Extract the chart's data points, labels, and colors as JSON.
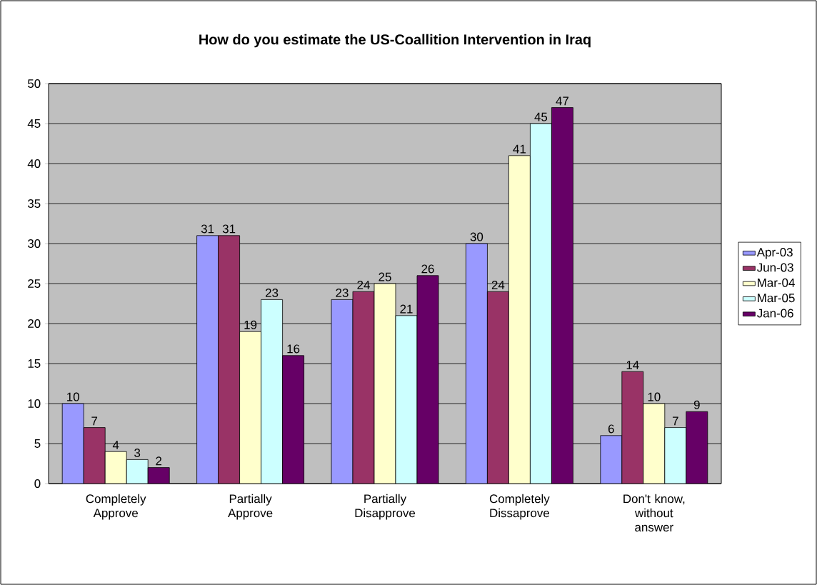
{
  "chart_data": {
    "type": "bar",
    "title": "How do you estimate the US-Coallition Intervention in Iraq",
    "categories": [
      "Completely Approve",
      "Partially Approve",
      "Partially Disapprove",
      "Completely Dissaprove",
      "Don't know, without answer"
    ],
    "series": [
      {
        "name": "Apr-03",
        "color": "#9999ff",
        "values": [
          10,
          31,
          23,
          30,
          6
        ]
      },
      {
        "name": "Jun-03",
        "color": "#993366",
        "values": [
          7,
          31,
          24,
          24,
          14
        ]
      },
      {
        "name": "Mar-04",
        "color": "#ffffcc",
        "values": [
          4,
          19,
          25,
          41,
          10
        ]
      },
      {
        "name": "Mar-05",
        "color": "#ccffff",
        "values": [
          3,
          23,
          21,
          45,
          7
        ]
      },
      {
        "name": "Jan-06",
        "color": "#660066",
        "values": [
          2,
          16,
          26,
          47,
          9
        ]
      }
    ],
    "ylim": [
      0,
      50
    ],
    "yticks": [
      0,
      5,
      10,
      15,
      20,
      25,
      30,
      35,
      40,
      45,
      50
    ],
    "grid": "y",
    "legend": "right",
    "data_labels": true
  }
}
